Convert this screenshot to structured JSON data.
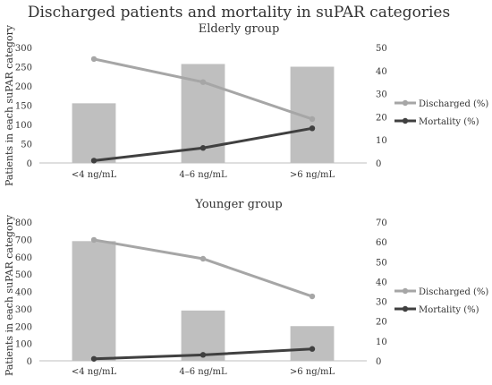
{
  "figure_title": "Discharged patients and mortality in suPAR categories",
  "shared_ylabel": "Patients in each suPAR category",
  "colors": {
    "bar": "#bfbfbf",
    "discharged": "#a6a6a6",
    "mortality": "#404040",
    "axis": "#bfbfbf",
    "text": "#333333"
  },
  "chart_data": [
    {
      "type": "bar",
      "title": "Elderly group",
      "categories": [
        "<4 ng/mL",
        "4–6 ng/mL",
        ">6 ng/mL"
      ],
      "bar_values": [
        155,
        257,
        250
      ],
      "ylim_left": [
        0,
        300
      ],
      "yticks_left": [
        "0",
        "50",
        "100",
        "150",
        "200",
        "250",
        "300"
      ],
      "ylim_right": [
        0,
        50
      ],
      "yticks_right": [
        "0",
        "10",
        "20",
        "30",
        "40",
        "50"
      ],
      "series": [
        {
          "name": "Discharged (%)",
          "axis": "right",
          "values": [
            45,
            35,
            19
          ]
        },
        {
          "name": "Mortality (%)",
          "axis": "right",
          "values": [
            1,
            6.5,
            15
          ]
        }
      ],
      "grid": false,
      "legend": "right"
    },
    {
      "type": "bar",
      "title": "Younger group",
      "categories": [
        "<4 ng/mL",
        "4–6 ng/mL",
        ">6 ng/mL"
      ],
      "bar_values": [
        690,
        290,
        200
      ],
      "ylim_left": [
        0,
        800
      ],
      "yticks_left": [
        "0",
        "100",
        "200",
        "300",
        "400",
        "500",
        "600",
        "700",
        "800"
      ],
      "ylim_right": [
        0,
        70
      ],
      "yticks_right": [
        "0",
        "10",
        "20",
        "30",
        "40",
        "50",
        "60",
        "70"
      ],
      "series": [
        {
          "name": "Discharged (%)",
          "axis": "right",
          "values": [
            61,
            51.5,
            32.5
          ]
        },
        {
          "name": "Mortality (%)",
          "axis": "right",
          "values": [
            1,
            3,
            6
          ]
        }
      ],
      "grid": false,
      "legend": "right"
    }
  ]
}
